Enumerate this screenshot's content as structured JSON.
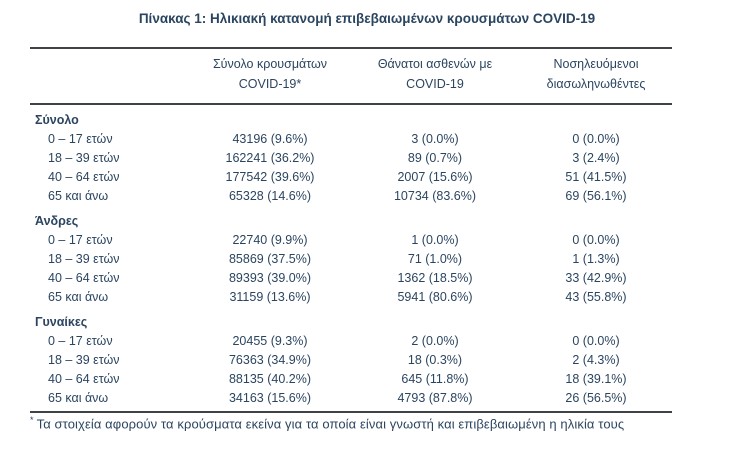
{
  "page": {
    "title": "Πίνακας 1: Ηλικιακή κατανομή επιβεβαιωμένων κρουσμάτων COVID-19"
  },
  "table": {
    "columns": [
      {
        "line1": "Σύνολο κρουσμάτων",
        "line2": "COVID-19*"
      },
      {
        "line1": "Θάνατοι ασθενών με",
        "line2": "COVID-19"
      },
      {
        "line1": "Νοσηλευόμενοι",
        "line2": "διασωληνωθέντες"
      }
    ],
    "sections": [
      {
        "label": "Σύνολο",
        "rows": [
          {
            "age": "0 – 17 ετών",
            "cases": "43196 (9.6%)",
            "deaths": "3 (0.0%)",
            "intubated": "0 (0.0%)"
          },
          {
            "age": "18 – 39 ετών",
            "cases": "162241 (36.2%)",
            "deaths": "89 (0.7%)",
            "intubated": "3 (2.4%)"
          },
          {
            "age": "40 – 64 ετών",
            "cases": "177542 (39.6%)",
            "deaths": "2007 (15.6%)",
            "intubated": "51 (41.5%)"
          },
          {
            "age": "65 και άνω",
            "cases": "65328 (14.6%)",
            "deaths": "10734 (83.6%)",
            "intubated": "69 (56.1%)"
          }
        ]
      },
      {
        "label": "Άνδρες",
        "rows": [
          {
            "age": "0 – 17 ετών",
            "cases": "22740 (9.9%)",
            "deaths": "1 (0.0%)",
            "intubated": "0 (0.0%)"
          },
          {
            "age": "18 – 39 ετών",
            "cases": "85869 (37.5%)",
            "deaths": "71 (1.0%)",
            "intubated": "1 (1.3%)"
          },
          {
            "age": "40 – 64 ετών",
            "cases": "89393 (39.0%)",
            "deaths": "1362 (18.5%)",
            "intubated": "33 (42.9%)"
          },
          {
            "age": "65 και άνω",
            "cases": "31159 (13.6%)",
            "deaths": "5941 (80.6%)",
            "intubated": "43 (55.8%)"
          }
        ]
      },
      {
        "label": "Γυναίκες",
        "rows": [
          {
            "age": "0 – 17 ετών",
            "cases": "20455 (9.3%)",
            "deaths": "2 (0.0%)",
            "intubated": "0 (0.0%)"
          },
          {
            "age": "18 – 39 ετών",
            "cases": "76363 (34.9%)",
            "deaths": "18 (0.3%)",
            "intubated": "2 (4.3%)"
          },
          {
            "age": "40 – 64 ετών",
            "cases": "88135 (40.2%)",
            "deaths": "645 (11.8%)",
            "intubated": "18 (39.1%)"
          },
          {
            "age": "65 και άνω",
            "cases": "34163 (15.6%)",
            "deaths": "4793 (87.8%)",
            "intubated": "26 (56.5%)"
          }
        ]
      }
    ]
  },
  "footnote": {
    "marker": "*",
    "text": "Τα στοιχεία αφορούν τα κρούσματα εκείνα για τα οποία είναι γνωστή και επιβεβαιωμένη η ηλικία τους"
  },
  "colors": {
    "text": "#2b4560",
    "rule": "#3f4347",
    "background": "#ffffff"
  }
}
